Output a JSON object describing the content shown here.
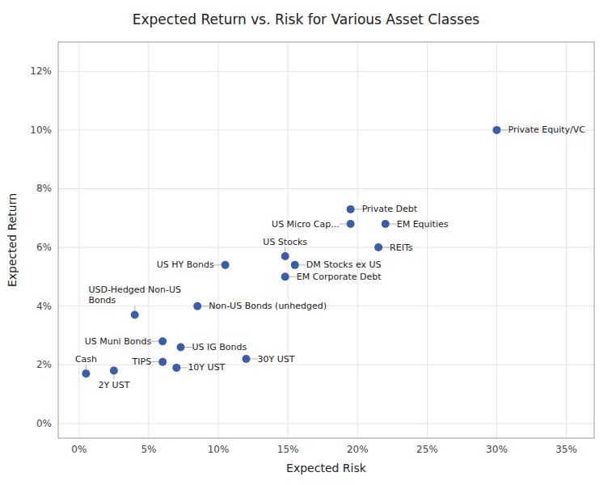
{
  "chart_data": {
    "type": "scatter",
    "title": "Expected Return vs. Risk for Various Asset Classes",
    "x_label": "Expected Risk",
    "y_label": "Expected Return",
    "color": "#3B5EA6",
    "grid": true,
    "xlim": [
      -0.015,
      0.37
    ],
    "ylim": [
      -0.005,
      0.13
    ],
    "xticks": [
      {
        "value": 0.0,
        "label": "0%"
      },
      {
        "value": 0.05,
        "label": "5%"
      },
      {
        "value": 0.1,
        "label": "10%"
      },
      {
        "value": 0.15,
        "label": "15%"
      },
      {
        "value": 0.2,
        "label": "20%"
      },
      {
        "value": 0.25,
        "label": "25%"
      },
      {
        "value": 0.3,
        "label": "30%"
      },
      {
        "value": 0.35,
        "label": "35%"
      }
    ],
    "yticks": [
      {
        "value": 0.0,
        "label": "0%"
      },
      {
        "value": 0.02,
        "label": "2%"
      },
      {
        "value": 0.04,
        "label": "4%"
      },
      {
        "value": 0.06,
        "label": "6%"
      },
      {
        "value": 0.08,
        "label": "8%"
      },
      {
        "value": 0.1,
        "label": "10%"
      },
      {
        "value": 0.12,
        "label": "12%"
      }
    ],
    "x": [
      0.005,
      0.025,
      0.06,
      0.07,
      0.06,
      0.073,
      0.12,
      0.04,
      0.085,
      0.105,
      0.148,
      0.155,
      0.148,
      0.195,
      0.195,
      0.22,
      0.215,
      0.3
    ],
    "values": [
      0.017,
      0.018,
      0.021,
      0.019,
      0.028,
      0.026,
      0.022,
      0.037,
      0.04,
      0.054,
      0.057,
      0.054,
      0.05,
      0.068,
      0.073,
      0.068,
      0.06,
      0.1
    ],
    "annotations": [
      "Cash",
      "2Y UST",
      "TIPS",
      "10Y UST",
      "US Muni Bonds",
      "US IG Bonds",
      "30Y UST",
      "USD-Hedged Non-US\nBonds",
      "Non-US Bonds (unhedged)",
      "US HY Bonds",
      "US Stocks",
      "DM Stocks ex US",
      "EM Corporate Debt",
      "US Micro Cap...",
      "Private Debt",
      "EM Equities",
      "REITs",
      "Private Equity/VC"
    ]
  }
}
